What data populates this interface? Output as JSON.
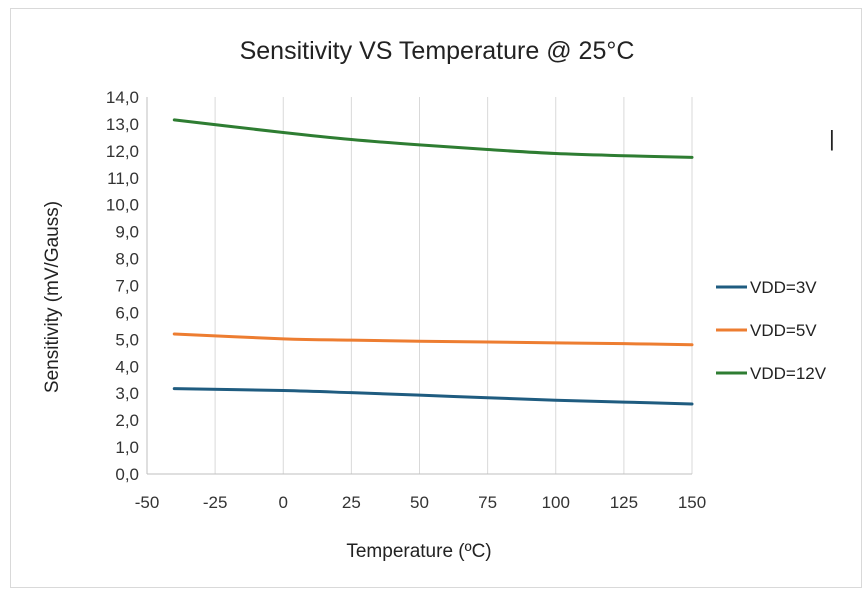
{
  "chart_data": {
    "type": "line",
    "title": "Sensitivity VS Temperature @ 25°C",
    "xlabel": "Temperature (ºC)",
    "ylabel": "Sensitivity (mV/Gauss)",
    "xlim": [
      -50,
      150
    ],
    "ylim": [
      0,
      14
    ],
    "x_ticks": [
      -50,
      -25,
      0,
      25,
      50,
      75,
      100,
      125,
      150
    ],
    "y_ticks": [
      "0,0",
      "1,0",
      "2,0",
      "3,0",
      "4,0",
      "5,0",
      "6,0",
      "7,0",
      "8,0",
      "9,0",
      "10,0",
      "11,0",
      "12,0",
      "13,0",
      "14,0"
    ],
    "grid": "vertical",
    "legend_position": "right",
    "series": [
      {
        "name": "VDD=3V",
        "color": "#1f5c80",
        "x": [
          -40,
          0,
          25,
          50,
          75,
          100,
          125,
          150
        ],
        "y": [
          3.17,
          3.1,
          3.02,
          2.93,
          2.83,
          2.74,
          2.67,
          2.6
        ]
      },
      {
        "name": "VDD=5V",
        "color": "#ed7d31",
        "x": [
          -40,
          0,
          25,
          50,
          75,
          100,
          125,
          150
        ],
        "y": [
          5.2,
          5.02,
          4.97,
          4.93,
          4.9,
          4.87,
          4.84,
          4.8
        ]
      },
      {
        "name": "VDD=12V",
        "color": "#2e7d32",
        "x": [
          -40,
          0,
          25,
          50,
          75,
          100,
          125,
          150
        ],
        "y": [
          13.15,
          12.68,
          12.42,
          12.22,
          12.05,
          11.9,
          11.82,
          11.76
        ]
      }
    ],
    "annotation": "|"
  }
}
